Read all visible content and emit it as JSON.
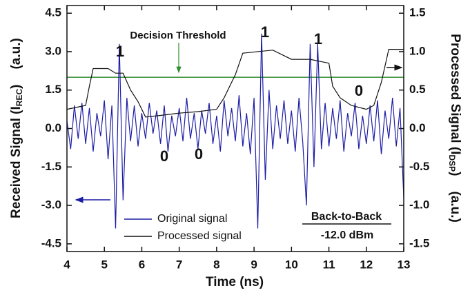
{
  "chart_data": {
    "type": "line",
    "x_label": "Time (ns)",
    "y_label": {
      "main": "Received Signal (I",
      "sub": "REC",
      "end": ")",
      "unit": "(a.u.)"
    },
    "y2_label": {
      "main": "Processed Signal (I",
      "sub": "DSP",
      "end": ")",
      "unit": "(a.u.)"
    },
    "xlim": [
      4,
      13
    ],
    "xticks": [
      4,
      5,
      6,
      7,
      8,
      9,
      10,
      11,
      12,
      13
    ],
    "ylim": [
      -4.8,
      4.8
    ],
    "yticks": [
      4.5,
      {
        "value": 3,
        "label": "3.0"
      },
      1.5,
      {
        "value": 0,
        "label": "0.0"
      },
      -1.5,
      {
        "value": -3,
        "label": "-3.0"
      },
      -4.5
    ],
    "y2lim": [
      -1.6,
      1.6
    ],
    "y2ticks": [
      1.5,
      {
        "value": 1,
        "label": "1.0"
      },
      0.5,
      {
        "value": 0,
        "label": "0.0"
      },
      -0.5,
      {
        "value": -1,
        "label": "-1.0"
      },
      -1.5
    ],
    "threshold": 2.0,
    "threshold_color": "#2e8b2e",
    "series": [
      {
        "name": "Original signal",
        "color": "#1c1ca6",
        "x": [
          4.0,
          4.1,
          4.2,
          4.3,
          4.4,
          4.5,
          4.6,
          4.7,
          4.8,
          4.9,
          5.0,
          5.1,
          5.2,
          5.3,
          5.4,
          5.5,
          5.6,
          5.7,
          5.8,
          5.9,
          6.0,
          6.1,
          6.2,
          6.3,
          6.4,
          6.5,
          6.6,
          6.7,
          6.8,
          6.9,
          7.0,
          7.1,
          7.2,
          7.3,
          7.4,
          7.5,
          7.6,
          7.7,
          7.8,
          7.9,
          8.0,
          8.1,
          8.2,
          8.3,
          8.4,
          8.5,
          8.6,
          8.7,
          8.8,
          8.9,
          9.0,
          9.1,
          9.2,
          9.3,
          9.4,
          9.5,
          9.6,
          9.7,
          9.8,
          9.9,
          10.0,
          10.1,
          10.2,
          10.3,
          10.4,
          10.5,
          10.6,
          10.7,
          10.8,
          10.9,
          11.0,
          11.1,
          11.2,
          11.3,
          11.4,
          11.5,
          11.6,
          11.7,
          11.8,
          11.9,
          12.0,
          12.1,
          12.2,
          12.3,
          12.4,
          12.5,
          12.6,
          12.7,
          12.8,
          12.9,
          13.0
        ],
        "values": [
          0.3,
          -0.8,
          0.9,
          -0.4,
          1.0,
          -0.6,
          0.8,
          -0.9,
          0.6,
          -0.3,
          1.1,
          -1.2,
          0.9,
          -3.9,
          3.3,
          -2.8,
          1.2,
          -0.5,
          0.9,
          -0.7,
          0.6,
          -0.4,
          1.0,
          -0.2,
          0.7,
          -0.6,
          0.9,
          -0.9,
          0.5,
          -0.3,
          0.8,
          -0.5,
          1.2,
          -0.4,
          0.6,
          -0.8,
          0.7,
          -0.2,
          1.0,
          -0.6,
          0.5,
          -0.9,
          1.1,
          -0.3,
          0.8,
          -0.5,
          1.3,
          -0.7,
          0.6,
          -1.0,
          1.2,
          -3.9,
          3.7,
          -2.0,
          1.5,
          -0.8,
          0.9,
          -0.4,
          1.1,
          -0.6,
          0.7,
          -0.9,
          1.2,
          -0.5,
          -3.0,
          3.3,
          -1.5,
          3.3,
          -0.8,
          1.0,
          -0.7,
          0.8,
          -0.4,
          1.1,
          -0.9,
          0.6,
          -0.3,
          1.0,
          -0.8,
          0.5,
          -0.6,
          0.9,
          -0.5,
          1.1,
          -1.0,
          0.7,
          -0.4,
          1.2,
          -0.7,
          0.8,
          -2.7
        ]
      },
      {
        "name": "Processed signal",
        "color": "#111111",
        "axis": "y2",
        "x": [
          4.0,
          4.5,
          4.6,
          4.7,
          5.1,
          5.3,
          5.5,
          5.7,
          5.9,
          6.1,
          6.5,
          7.0,
          7.5,
          8.0,
          8.2,
          8.5,
          8.7,
          9.5,
          10.0,
          10.5,
          11.0,
          11.1,
          11.3,
          11.6,
          12.0,
          12.2,
          12.4,
          12.6,
          13.0
        ],
        "values": [
          0.25,
          0.3,
          0.55,
          0.78,
          0.78,
          0.72,
          0.72,
          0.5,
          0.35,
          0.15,
          0.17,
          0.2,
          0.22,
          0.25,
          0.4,
          0.7,
          0.98,
          1.02,
          0.9,
          0.9,
          0.85,
          0.55,
          0.4,
          0.3,
          0.25,
          0.3,
          0.6,
          1.03,
          1.03
        ]
      }
    ],
    "annotations": [
      "1",
      "1",
      "1",
      "0",
      "0",
      "0",
      "Decision Threshold",
      "Back-to-Back",
      "-12.0 dBm"
    ]
  }
}
